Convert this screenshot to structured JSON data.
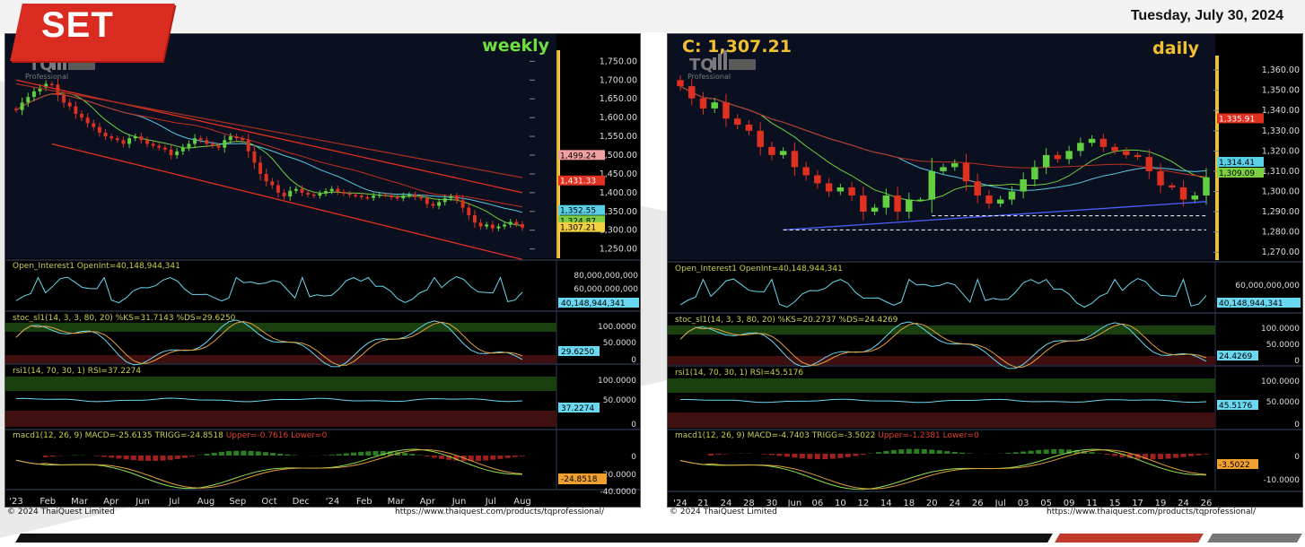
{
  "header": {
    "badge": "SET",
    "date": "Tuesday, July 30, 2024"
  },
  "left": {
    "timeframe": "weekly",
    "logo": {
      "word": "TQ",
      "sub": "Professional"
    },
    "price_axis": [
      "1,750.00",
      "1,700.00",
      "1,650.00",
      "1,600.00",
      "1,550.00",
      "1,500.00",
      "1,450.00",
      "1,400.00",
      "1,350.00",
      "1,300.00",
      "1,250.00"
    ],
    "price_tags": [
      {
        "text": "1,499.24",
        "bg": "#f0a0a0",
        "fg": "#000000"
      },
      {
        "text": "1,431.33",
        "bg": "#e03020",
        "fg": "#ffffff"
      },
      {
        "text": "1,352.55",
        "bg": "#5ad0e8",
        "fg": "#000000"
      },
      {
        "text": "1,324.87",
        "bg": "#7ad040",
        "fg": "#000000"
      },
      {
        "text": "1,307.21",
        "bg": "#f0d040",
        "fg": "#000000"
      }
    ],
    "oi": {
      "label": "Open_Interest1 OpenInt=40,148,944,341",
      "axis": [
        "80,000,000,000",
        "60,000,000,000"
      ],
      "tag": "40,148,944,341"
    },
    "stoc": {
      "label": "stoc_sl1(14, 3, 3, 80, 20) %KS=31.7143 %DS=29.6250",
      "axis": [
        "100.0000",
        "50.0000",
        "0"
      ],
      "tag": "29.6250"
    },
    "rsi": {
      "label": "rsi1(14, 70, 30, 1) RSI=37.2274",
      "axis": [
        "100.0000",
        "50.0000",
        "0"
      ],
      "tag": "37.2274"
    },
    "macd": {
      "label_main": "macd1(12, 26, 9) MACD=-25.6135 TRIGG=-24.8518 ",
      "label_red": "Upper=-0.7616 Lower=0",
      "axis": [
        "0",
        "-20.0000",
        "-40.0000"
      ],
      "tag": "-24.8518"
    },
    "time_axis": [
      "'23",
      "Feb",
      "Mar",
      "Apr",
      "Jun",
      "Jul",
      "Aug",
      "Sep",
      "Oct",
      "Dec",
      "'24",
      "Feb",
      "Mar",
      "Apr",
      "Jun",
      "Jul",
      "Aug"
    ],
    "copyright": "© 2024 ThaiQuest Limited",
    "url": "https://www.thaiquest.com/products/tqprofessional/"
  },
  "right": {
    "close_label": "C: 1,307.21",
    "timeframe": "daily",
    "logo": {
      "word": "TQ",
      "sub": "Professional"
    },
    "price_axis": [
      "1,360.00",
      "1,350.00",
      "1,340.00",
      "1,330.00",
      "1,320.00",
      "1,310.00",
      "1,300.00",
      "1,290.00",
      "1,280.00",
      "1,270.00"
    ],
    "price_tags": [
      {
        "text": "1,335.91",
        "bg": "#e03020",
        "fg": "#ffffff"
      },
      {
        "text": "1,314.41",
        "bg": "#5ad0e8",
        "fg": "#000000"
      },
      {
        "text": "1,309.09",
        "bg": "#7ad040",
        "fg": "#000000"
      }
    ],
    "oi": {
      "label": "Open_Interest1 OpenInt=40,148,944,341",
      "axis": [
        "60,000,000,000"
      ],
      "tag": "40,148,944,341"
    },
    "stoc": {
      "label": "stoc_sl1(14, 3, 3, 80, 20) %KS=20.2737 %DS=24.4269",
      "axis": [
        "100.0000",
        "50.0000",
        "0"
      ],
      "tag": "24.4269"
    },
    "rsi": {
      "label": "rsi1(14, 70, 30, 1) RSI=45.5176",
      "axis": [
        "100.0000",
        "50.0000",
        "0"
      ],
      "tag": "45.5176"
    },
    "macd": {
      "label_main": "macd1(12, 26, 9) MACD=-4.7403 TRIGG=-3.5022 ",
      "label_red": "Upper=-1.2381 Lower=0",
      "axis": [
        "0",
        "-10.0000"
      ],
      "tag": "-3.5022"
    },
    "time_axis": [
      "'24",
      "21",
      "24",
      "28",
      "30",
      "Jun",
      "06",
      "10",
      "12",
      "14",
      "18",
      "20",
      "24",
      "26",
      "Jul",
      "03",
      "05",
      "09",
      "11",
      "15",
      "17",
      "19",
      "24",
      "26"
    ],
    "copyright": "© 2024 ThaiQuest Limited",
    "url": "https://www.thaiquest.com/products/tqprofessional/"
  },
  "chart_data": [
    {
      "type": "line",
      "title": "weekly",
      "ylim": [
        1230,
        1770
      ],
      "closes": [
        1620,
        1640,
        1655,
        1670,
        1680,
        1690,
        1688,
        1660,
        1640,
        1630,
        1610,
        1600,
        1585,
        1575,
        1560,
        1550,
        1545,
        1540,
        1530,
        1545,
        1550,
        1540,
        1530,
        1525,
        1520,
        1515,
        1500,
        1510,
        1520,
        1530,
        1545,
        1540,
        1530,
        1525,
        1520,
        1540,
        1550,
        1545,
        1540,
        1510,
        1480,
        1450,
        1430,
        1420,
        1400,
        1390,
        1405,
        1410,
        1400,
        1395,
        1392,
        1398,
        1404,
        1410,
        1402,
        1398,
        1394,
        1392,
        1388,
        1386,
        1392,
        1395,
        1393,
        1388,
        1385,
        1392,
        1395,
        1388,
        1385,
        1370,
        1365,
        1375,
        1385,
        1390,
        1380,
        1360,
        1340,
        1320,
        1310,
        1315,
        1305,
        1310,
        1315,
        1322,
        1316,
        1307
      ],
      "channel": {
        "upper": [
          [
            0,
            1700
          ],
          [
            85,
            1400
          ]
        ],
        "lower": [
          [
            6,
            1530
          ],
          [
            85,
            1222
          ]
        ],
        "upper2": [
          [
            0,
            1690
          ],
          [
            85,
            1440
          ]
        ]
      },
      "indicators": {
        "open_interest": 40148944341,
        "stoc_ks": 31.7143,
        "stoc_ds": 29.625,
        "rsi": 37.2274,
        "macd": -25.6135,
        "trigg": -24.8518
      }
    },
    {
      "type": "line",
      "title": "daily",
      "ylim": [
        1267,
        1368
      ],
      "closes": [
        1352,
        1346,
        1341,
        1344,
        1336,
        1333,
        1330,
        1322,
        1318,
        1320,
        1312,
        1308,
        1304,
        1300,
        1302,
        1298,
        1290,
        1292,
        1298,
        1290,
        1296,
        1296,
        1310,
        1312,
        1314,
        1305,
        1298,
        1294,
        1296,
        1300,
        1306,
        1312,
        1318,
        1316,
        1320,
        1324,
        1326,
        1322,
        1320,
        1318,
        1317,
        1310,
        1303,
        1302,
        1296,
        1298,
        1307
      ],
      "support": [
        [
          9,
          1281
        ],
        [
          46,
          1295
        ]
      ],
      "indicators": {
        "open_interest": 40148944341,
        "stoc_ks": 20.2737,
        "stoc_ds": 24.4269,
        "rsi": 45.5176,
        "macd": -4.7403,
        "trigg": -3.5022
      }
    }
  ]
}
